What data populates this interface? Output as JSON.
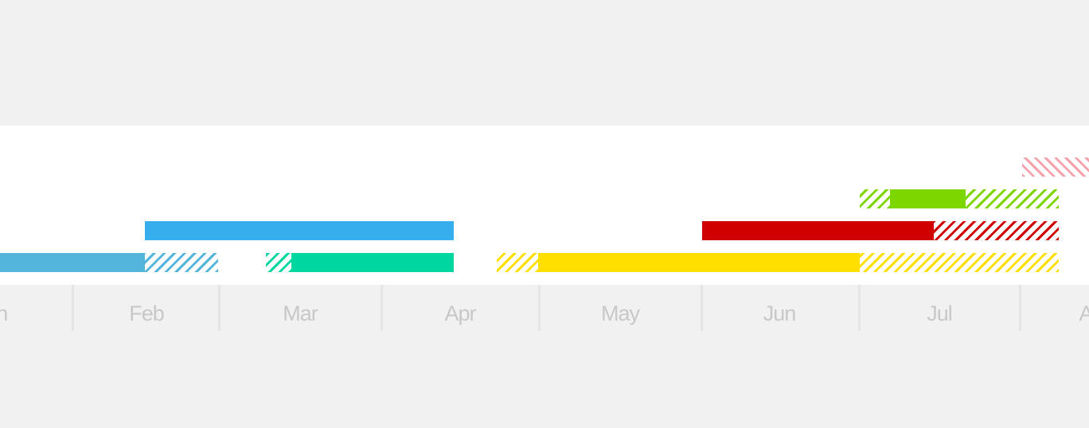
{
  "timeline": {
    "months": [
      {
        "label": "Jan"
      },
      {
        "label": "Feb"
      },
      {
        "label": "Mar"
      },
      {
        "label": "Apr"
      },
      {
        "label": "May"
      },
      {
        "label": "Jun"
      },
      {
        "label": "Jul"
      },
      {
        "label": "Aug"
      }
    ],
    "bars": [
      {
        "id": "bar-pink",
        "color": "#f4a3ad",
        "segments": [
          {
            "style": "hatch-back"
          }
        ]
      },
      {
        "id": "bar-green",
        "color": "#7ed600",
        "segments": [
          {
            "style": "hatch"
          },
          {
            "style": "solid"
          },
          {
            "style": "hatch"
          }
        ]
      },
      {
        "id": "bar-blue",
        "color": "#36aeee",
        "segments": [
          {
            "style": "solid"
          }
        ]
      },
      {
        "id": "bar-red",
        "color": "#d10000",
        "segments": [
          {
            "style": "solid"
          },
          {
            "style": "hatch"
          }
        ]
      },
      {
        "id": "bar-lightblue",
        "color": "#53b4dc",
        "segments": [
          {
            "style": "solid"
          },
          {
            "style": "hatch"
          }
        ]
      },
      {
        "id": "bar-teal",
        "color": "#00d6a0",
        "segments": [
          {
            "style": "hatch"
          },
          {
            "style": "solid"
          }
        ]
      },
      {
        "id": "bar-yellow",
        "color": "#ffdf00",
        "segments": [
          {
            "style": "hatch"
          },
          {
            "style": "solid"
          },
          {
            "style": "hatch"
          }
        ]
      }
    ]
  }
}
